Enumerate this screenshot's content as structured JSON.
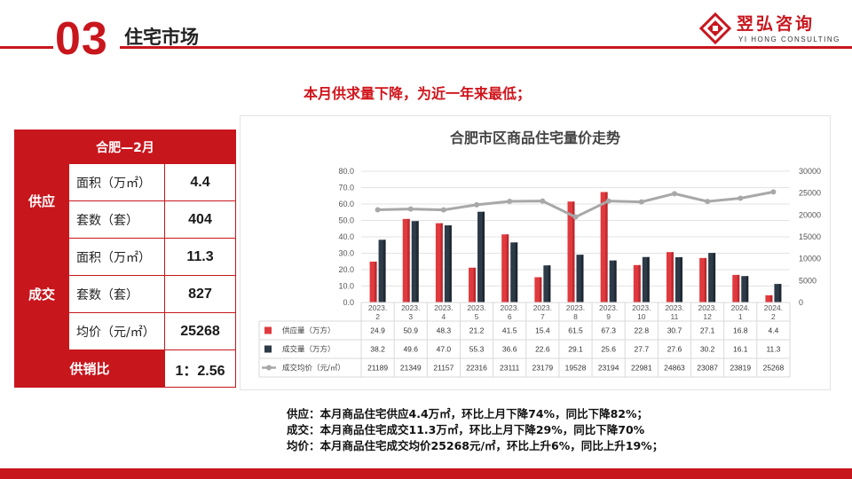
{
  "header": {
    "section_number": "03",
    "section_title": "住宅市场",
    "brand_name": "翌弘咨询",
    "brand_sub": "YI HONG CONSULTING"
  },
  "headline": "本月供求量下降，为近一年来最低；",
  "stats_table": {
    "title": "合肥—2月",
    "supply_label": "供应",
    "deal_label": "成交",
    "rows": {
      "supply_area_label": "面积（万㎡）",
      "supply_area_value": "4.4",
      "supply_units_label": "套数（套）",
      "supply_units_value": "404",
      "deal_area_label": "面积（万㎡）",
      "deal_area_value": "11.3",
      "deal_units_label": "套数（套）",
      "deal_units_value": "827",
      "deal_price_label": "均价（元/㎡）",
      "deal_price_value": "25268"
    },
    "ratio_label": "供销比",
    "ratio_value": "1：2.56"
  },
  "chart_data": {
    "type": "bar",
    "title": "合肥市区商品住宅量价走势",
    "categories": [
      "2023.\n2",
      "2023.\n3",
      "2023.\n4",
      "2023.\n5",
      "2023.\n6",
      "2023.\n7",
      "2023.\n8",
      "2023.\n9",
      "2023.\n10",
      "2023.\n11",
      "2023.\n12",
      "2024.\n1",
      "2024.\n2"
    ],
    "series": [
      {
        "name": "供应量（万方）",
        "kind": "bar",
        "axis": "left",
        "color": "#e03a3e",
        "values": [
          24.9,
          50.9,
          48.3,
          21.2,
          41.5,
          15.4,
          61.5,
          67.3,
          22.8,
          30.7,
          27.1,
          16.8,
          4.4
        ],
        "labels": [
          "24.9",
          "50.9",
          "48.3",
          "21.2",
          "41.5",
          "15.4",
          "61.5",
          "67.3",
          "22.8",
          "30.7",
          "27.1",
          "16.8",
          "4.4"
        ]
      },
      {
        "name": "成交量（万方）",
        "kind": "bar",
        "axis": "left",
        "color": "#2d3a48",
        "values": [
          38.2,
          49.6,
          47.0,
          55.3,
          36.6,
          22.6,
          29.1,
          25.6,
          27.7,
          27.6,
          30.2,
          16.1,
          11.3
        ],
        "labels": [
          "38.2",
          "49.6",
          "47.0",
          "55.3",
          "36.6",
          "22.6",
          "29.1",
          "25.6",
          "27.7",
          "27.6",
          "30.2",
          "16.1",
          "11.3"
        ]
      },
      {
        "name": "成交均价（元/㎡）",
        "kind": "line",
        "axis": "right",
        "color": "#a8a8a8",
        "values": [
          21189,
          21349,
          21157,
          22316,
          23111,
          23179,
          19528,
          23194,
          22981,
          24863,
          23087,
          23819,
          25268
        ],
        "labels": [
          "21189",
          "21349",
          "21157",
          "22316",
          "23111",
          "23179",
          "19528",
          "23194",
          "22981",
          "24863",
          "23087",
          "23819",
          "25268"
        ]
      }
    ],
    "y_left": {
      "min": 0,
      "max": 80,
      "step": 10,
      "ticks": [
        "0.0",
        "10.0",
        "20.0",
        "30.0",
        "40.0",
        "50.0",
        "60.0",
        "70.0",
        "80.0"
      ]
    },
    "y_right": {
      "min": 0,
      "max": 30000,
      "step": 5000,
      "ticks": [
        "0",
        "5000",
        "10000",
        "15000",
        "20000",
        "25000",
        "30000"
      ]
    },
    "grid": true,
    "legend": "data-table-below"
  },
  "notes": [
    "供应：本月商品住宅供应4.4万㎡，环比上月下降74%，同比下降82%；",
    "成交：本月商品住宅成交11.3万㎡，环比上月下降29%，同比下降70%",
    "均价：本月商品住宅成交均价25268元/㎡，环比上升6%，同比上升19%；"
  ],
  "colors": {
    "brand_red": "#c8161d",
    "headline_red": "#d0141b"
  }
}
